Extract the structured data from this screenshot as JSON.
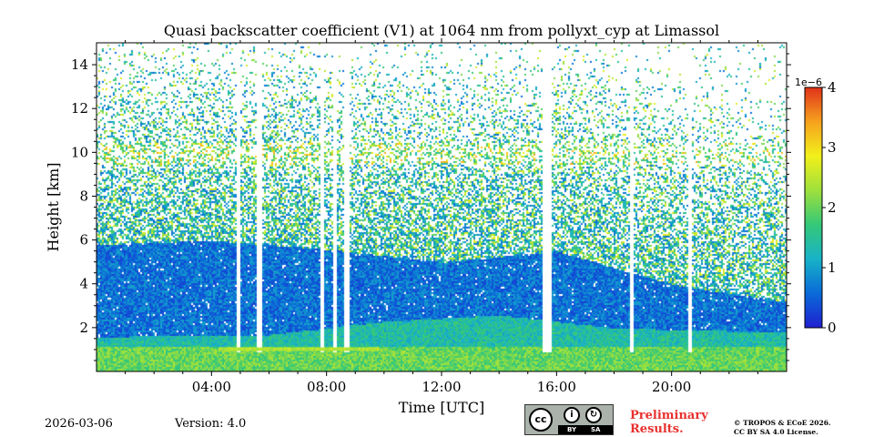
{
  "chart_data": {
    "type": "heatmap",
    "title": "Quasi backscatter coefficient (V1) at 1064 nm from pollyxt_cyp at Limassol",
    "xlabel": "Time [UTC]",
    "ylabel": "Height [km]",
    "xlim_hours": [
      0,
      24
    ],
    "ylim_km": [
      0,
      15
    ],
    "x_ticks": [
      {
        "hour": 4,
        "label": "04:00"
      },
      {
        "hour": 8,
        "label": "08:00"
      },
      {
        "hour": 12,
        "label": "12:00"
      },
      {
        "hour": 16,
        "label": "16:00"
      },
      {
        "hour": 20,
        "label": "20:00"
      }
    ],
    "y_ticks": [
      {
        "km": 2,
        "label": "2"
      },
      {
        "km": 4,
        "label": "4"
      },
      {
        "km": 6,
        "label": "6"
      },
      {
        "km": 8,
        "label": "8"
      },
      {
        "km": 10,
        "label": "10"
      },
      {
        "km": 12,
        "label": "12"
      },
      {
        "km": 14,
        "label": "14"
      }
    ],
    "colorbar": {
      "range": [
        0,
        4
      ],
      "exponent_label": "1e−6",
      "ticks": [
        {
          "value": 0,
          "label": "0"
        },
        {
          "value": 1,
          "label": "1"
        },
        {
          "value": 2,
          "label": "2"
        },
        {
          "value": 3,
          "label": "3"
        },
        {
          "value": 4,
          "label": "4"
        }
      ],
      "colormap": [
        "#1f1fd0",
        "#0a6ad8",
        "#18b2c8",
        "#34c878",
        "#9ee03c",
        "#f2f01a",
        "#f6a21e",
        "#e0321a"
      ]
    },
    "cloud_gap_intervals_hours": [
      [
        4.85,
        5.0
      ],
      [
        5.55,
        5.7
      ],
      [
        7.75,
        7.9
      ],
      [
        8.2,
        8.35
      ],
      [
        8.55,
        8.8
      ],
      [
        15.5,
        15.8
      ],
      [
        18.5,
        18.65
      ],
      [
        20.55,
        20.7
      ]
    ],
    "aerosol_layer_top_km": [
      {
        "hour": 0,
        "km": 5.8
      },
      {
        "hour": 4,
        "km": 6.0
      },
      {
        "hour": 8,
        "km": 5.6
      },
      {
        "hour": 12,
        "km": 5.0
      },
      {
        "hour": 16,
        "km": 5.5
      },
      {
        "hour": 20,
        "km": 4.0
      },
      {
        "hour": 24,
        "km": 3.2
      }
    ],
    "boundary_layer_top_km": [
      {
        "hour": 0,
        "km": 1.6
      },
      {
        "hour": 6,
        "km": 1.7
      },
      {
        "hour": 10,
        "km": 2.3
      },
      {
        "hour": 14,
        "km": 2.6
      },
      {
        "hour": 18,
        "km": 2.0
      },
      {
        "hour": 24,
        "km": 1.8
      }
    ]
  },
  "footer": {
    "date": "2026-03-06",
    "version": "Version: 4.0",
    "preliminary_line1": "Preliminary",
    "preliminary_line2": "Results.",
    "copyright_line1": "© TROPOS & ECoE 2026.",
    "copyright_line2": "CC BY SA 4.0 License.",
    "license_badge_cc": "cc",
    "license_badge_by": "BY",
    "license_badge_sa": "SA"
  }
}
